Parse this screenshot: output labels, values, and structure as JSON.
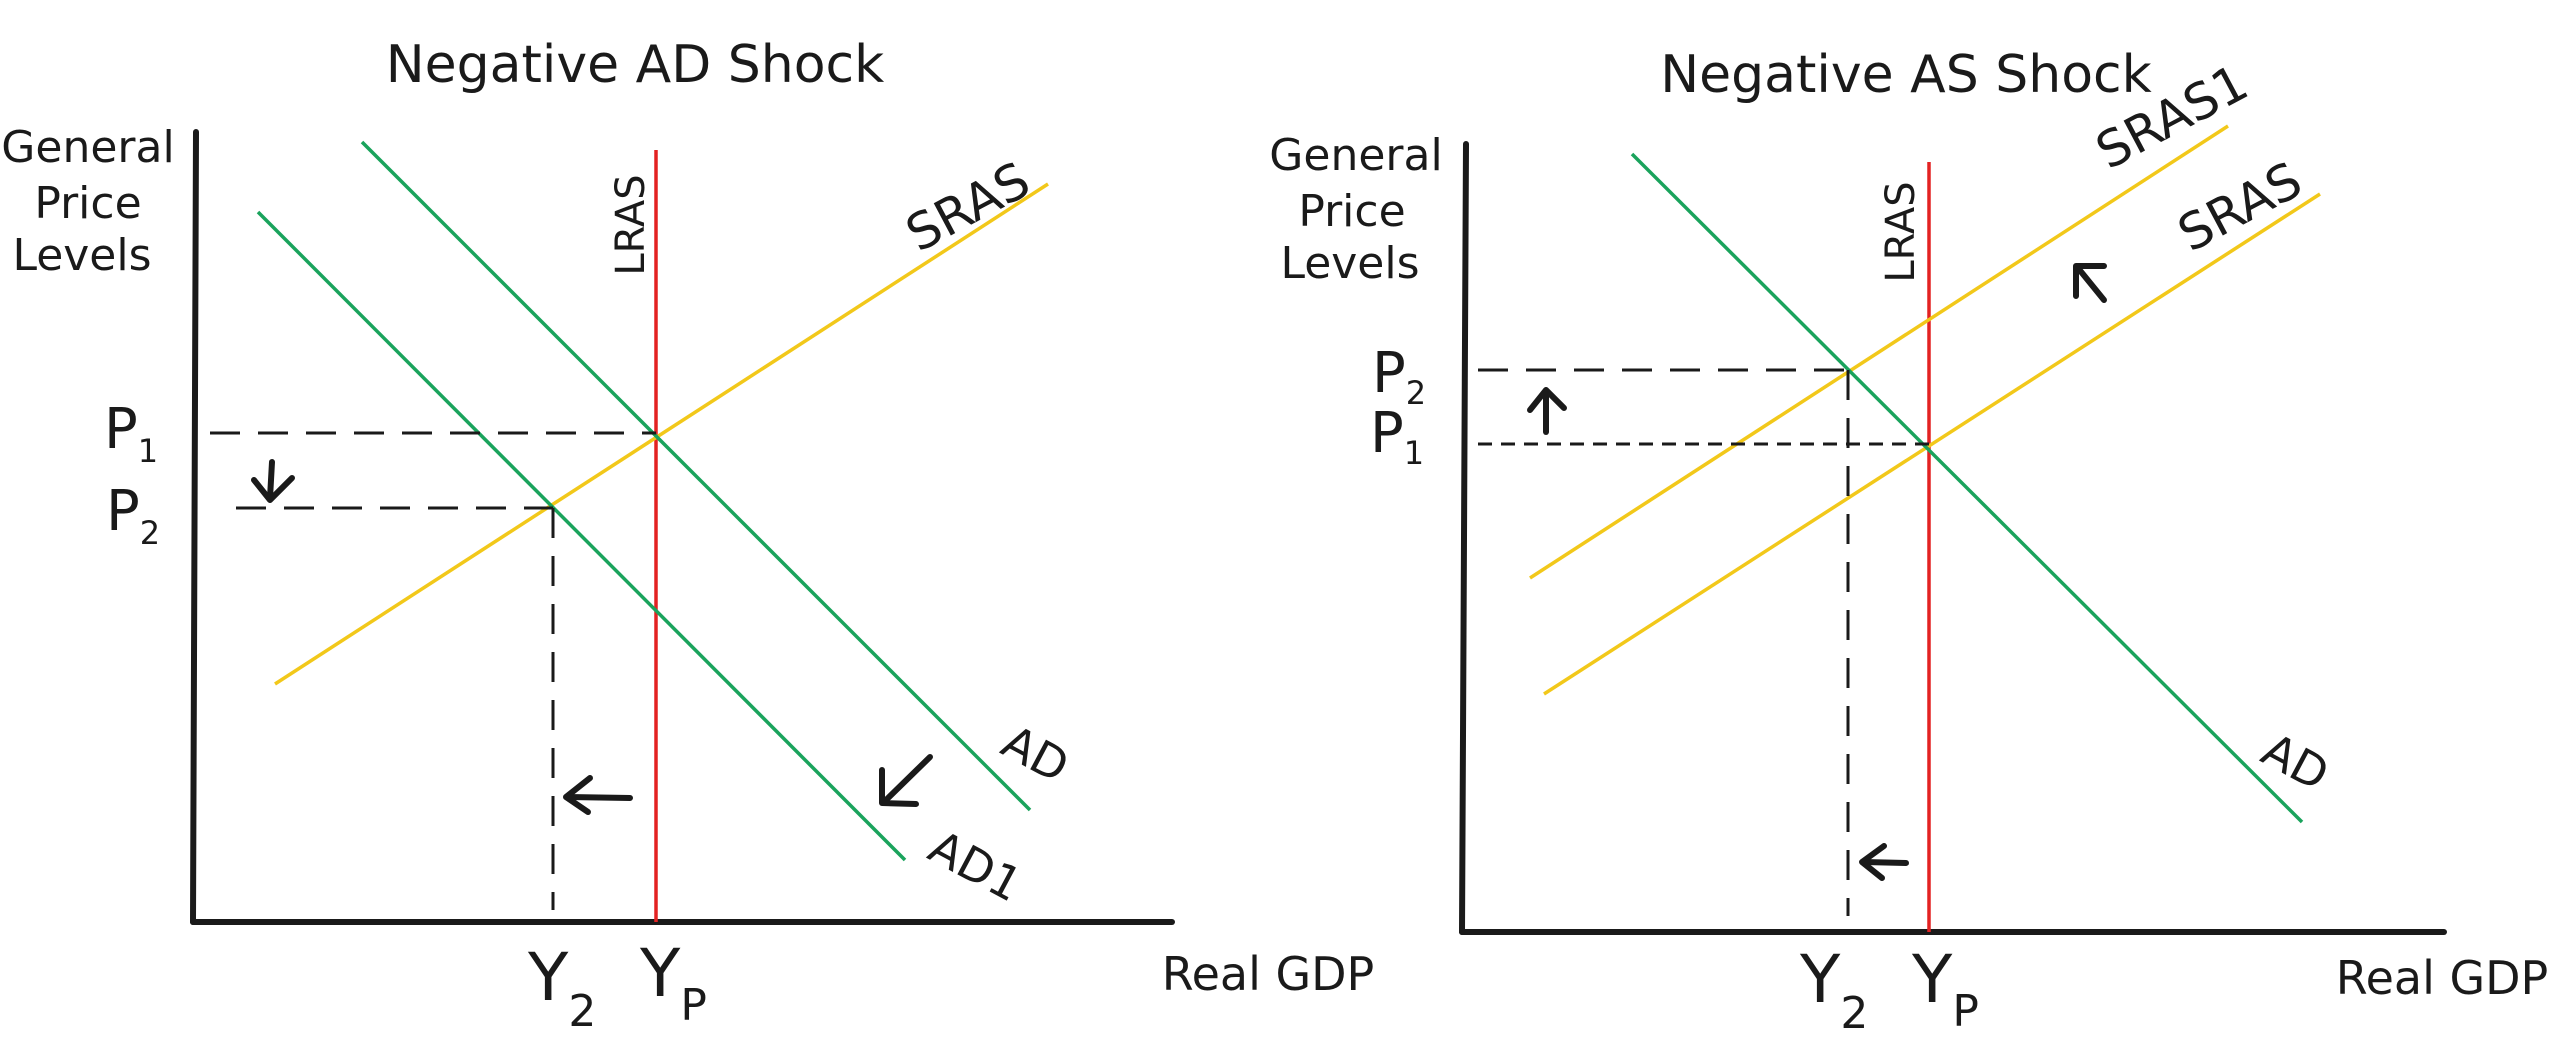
{
  "left": {
    "title": "Negative AD Shock",
    "y_axis_label": [
      "General",
      "Price",
      "Levels"
    ],
    "x_axis_label": "Real GDP",
    "lras_label": "LRAS",
    "sras_label": "SRAS",
    "ad_label": "AD",
    "ad1_label": "AD1",
    "p1_label": "P",
    "p1_sub": "1",
    "p2_label": "P",
    "p2_sub": "2",
    "y2_label": "Y",
    "y2_sub": "2",
    "yp_label": "Y",
    "yp_sub": "P"
  },
  "right": {
    "title": "Negative AS Shock",
    "y_axis_label": [
      "General",
      "Price",
      "Levels"
    ],
    "x_axis_label": "Real GDP",
    "lras_label": "LRAS",
    "sras_label": "SRAS",
    "sras1_label": "SRAS1",
    "ad_label": "AD",
    "p1_label": "P",
    "p1_sub": "1",
    "p2_label": "P",
    "p2_sub": "2",
    "y2_label": "Y",
    "y2_sub": "2",
    "yp_label": "Y",
    "yp_sub": "P"
  },
  "colors": {
    "ad_curve": "#1aa35c",
    "sras_curve": "#f2c81a",
    "lras_curve": "#e32222",
    "axes": "#1a1a1a"
  }
}
